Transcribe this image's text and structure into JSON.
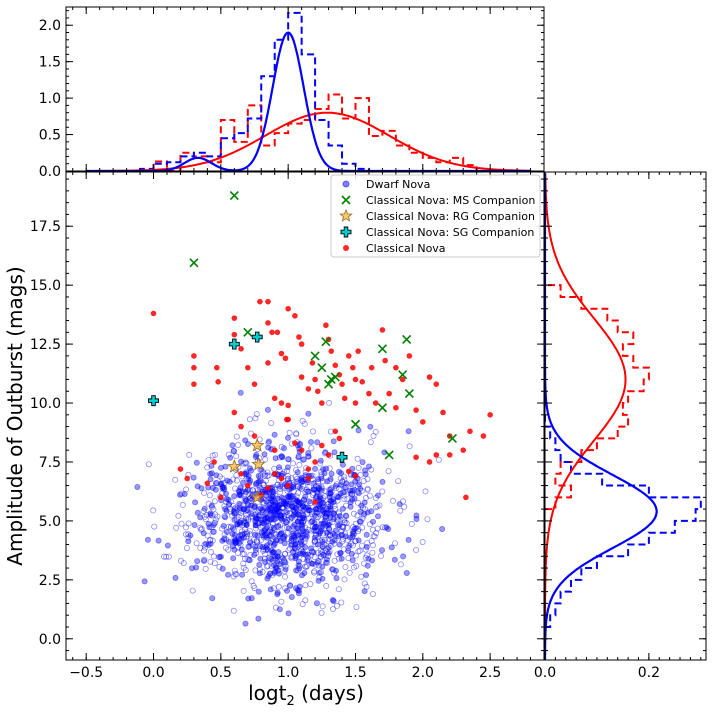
{
  "chart_data": {
    "type": "scatter",
    "main": {
      "xlabel": "logt",
      "xlabel_sub": "2",
      "xlabel_suffix": " (days)",
      "ylabel": "Amplitude of Outburst (mags)",
      "xlim": [
        -0.65,
        2.9
      ],
      "ylim": [
        -0.9,
        19.8
      ],
      "xticks": [
        -0.5,
        0.0,
        0.5,
        1.0,
        1.5,
        2.0,
        2.5
      ],
      "xtick_labels": [
        "−0.5",
        "0.0",
        "0.5",
        "1.0",
        "1.5",
        "2.0",
        "2.5"
      ],
      "yticks": [
        0.0,
        2.5,
        5.0,
        7.5,
        10.0,
        12.5,
        15.0,
        17.5
      ],
      "ytick_labels": [
        "0.0",
        "2.5",
        "5.0",
        "7.5",
        "10.0",
        "12.5",
        "15.0",
        "17.5"
      ],
      "legend_position": "top-right"
    },
    "legend": [
      {
        "label": "Dwarf Nova",
        "marker": "circle",
        "color": "#0000ff"
      },
      {
        "label": "Classical Nova: MS Companion",
        "marker": "x",
        "color": "#008000"
      },
      {
        "label": "Classical Nova: RG Companion",
        "marker": "star",
        "color": "#ffa500"
      },
      {
        "label": "Classical Nova: SG Companion",
        "marker": "plus",
        "color": "#00ced1"
      },
      {
        "label": "Classical Nova",
        "marker": "circle",
        "color": "#ff0000"
      }
    ],
    "dwarf_nova": {
      "count": 1400,
      "mean_x": 1.0,
      "sd_x": 0.36,
      "mean_y": 5.2,
      "sd_y": 1.5,
      "color": "#0000ff"
    },
    "classical_nova": [
      [
        0.0,
        13.8
      ],
      [
        0.3,
        12.0
      ],
      [
        0.3,
        11.5
      ],
      [
        0.3,
        10.8
      ],
      [
        0.48,
        10.9
      ],
      [
        0.47,
        11.5
      ],
      [
        0.6,
        13.6
      ],
      [
        0.6,
        12.9
      ],
      [
        0.65,
        12.3
      ],
      [
        0.7,
        11.5
      ],
      [
        0.75,
        10.8
      ],
      [
        0.6,
        9.6
      ],
      [
        0.65,
        9.0
      ],
      [
        0.75,
        8.6
      ],
      [
        0.79,
        14.3
      ],
      [
        0.85,
        14.3
      ],
      [
        0.85,
        13.4
      ],
      [
        0.88,
        13.0
      ],
      [
        0.92,
        13.0
      ],
      [
        0.95,
        12.1
      ],
      [
        0.98,
        11.9
      ],
      [
        0.85,
        11.7
      ],
      [
        0.9,
        10.2
      ],
      [
        0.95,
        10.0
      ],
      [
        0.99,
        9.3
      ],
      [
        1.0,
        9.9
      ],
      [
        1.0,
        14.0
      ],
      [
        1.05,
        13.7
      ],
      [
        1.08,
        12.8
      ],
      [
        1.1,
        12.5
      ],
      [
        1.1,
        11.1
      ],
      [
        1.15,
        10.6
      ],
      [
        1.18,
        11.7
      ],
      [
        1.2,
        11.0
      ],
      [
        1.22,
        10.5
      ],
      [
        1.25,
        10.0
      ],
      [
        1.28,
        13.3
      ],
      [
        1.3,
        12.7
      ],
      [
        1.32,
        12.2
      ],
      [
        1.35,
        11.6
      ],
      [
        1.38,
        11.2
      ],
      [
        1.4,
        10.8
      ],
      [
        1.42,
        10.2
      ],
      [
        1.45,
        12.0
      ],
      [
        1.48,
        11.5
      ],
      [
        1.5,
        11.0
      ],
      [
        1.5,
        10.0
      ],
      [
        1.52,
        12.2
      ],
      [
        1.55,
        10.9
      ],
      [
        1.6,
        10.4
      ],
      [
        1.62,
        11.5
      ],
      [
        1.65,
        10.0
      ],
      [
        1.7,
        13.1
      ],
      [
        1.72,
        11.8
      ],
      [
        1.75,
        10.4
      ],
      [
        1.8,
        9.8
      ],
      [
        1.8,
        11.5
      ],
      [
        1.85,
        11.0
      ],
      [
        1.9,
        12.0
      ],
      [
        1.95,
        9.7
      ],
      [
        2.0,
        9.2
      ],
      [
        2.05,
        11.1
      ],
      [
        2.1,
        10.8
      ],
      [
        2.15,
        9.6
      ],
      [
        2.2,
        7.8
      ],
      [
        2.3,
        8.0
      ],
      [
        2.35,
        8.8
      ],
      [
        2.45,
        8.6
      ],
      [
        2.5,
        9.5
      ],
      [
        2.32,
        6.0
      ],
      [
        2.1,
        7.8
      ],
      [
        2.05,
        7.5
      ],
      [
        1.95,
        7.7
      ],
      [
        2.2,
        8.6
      ],
      [
        1.15,
        7.2
      ],
      [
        1.2,
        7.5
      ],
      [
        1.25,
        8.2
      ],
      [
        1.3,
        7.8
      ],
      [
        1.1,
        8.0
      ],
      [
        1.05,
        8.3
      ],
      [
        1.0,
        9.3
      ],
      [
        0.9,
        8.0
      ],
      [
        0.85,
        6.4
      ],
      [
        0.9,
        7.0
      ],
      [
        0.65,
        7.0
      ],
      [
        0.7,
        6.5
      ],
      [
        0.8,
        6.1
      ],
      [
        0.95,
        6.8
      ],
      [
        1.0,
        6.5
      ],
      [
        1.15,
        6.8
      ],
      [
        1.2,
        5.8
      ],
      [
        1.35,
        8.8
      ],
      [
        1.38,
        8.5
      ],
      [
        1.45,
        7.1
      ],
      [
        1.5,
        6.9
      ],
      [
        0.2,
        7.2
      ],
      [
        0.25,
        6.8
      ],
      [
        0.4,
        6.6
      ],
      [
        0.45,
        7.5
      ],
      [
        0.5,
        6.0
      ]
    ],
    "ms_companion": [
      [
        0.6,
        18.8
      ],
      [
        0.3,
        15.95
      ],
      [
        0.7,
        13.0
      ],
      [
        1.2,
        12.0
      ],
      [
        1.28,
        12.6
      ],
      [
        1.25,
        11.5
      ],
      [
        1.3,
        10.8
      ],
      [
        1.32,
        11.0
      ],
      [
        1.7,
        12.3
      ],
      [
        1.88,
        12.7
      ],
      [
        1.85,
        11.2
      ],
      [
        1.9,
        10.4
      ],
      [
        1.7,
        9.8
      ],
      [
        1.5,
        9.1
      ],
      [
        1.75,
        7.8
      ],
      [
        2.22,
        8.5
      ],
      [
        1.35,
        11.1
      ]
    ],
    "rg_companion": [
      [
        0.6,
        7.3
      ],
      [
        0.77,
        8.2
      ],
      [
        0.78,
        7.4
      ],
      [
        0.77,
        6.0
      ]
    ],
    "sg_companion": [
      [
        0.6,
        12.5
      ],
      [
        0.77,
        12.8
      ],
      [
        0.0,
        10.1
      ],
      [
        1.4,
        7.7
      ]
    ],
    "top_hist": {
      "ylim": [
        0,
        2.25
      ],
      "yticks": [
        0.0,
        0.5,
        1.0,
        1.5,
        2.0
      ],
      "ytick_labels": [
        "0.0",
        "0.5",
        "1.0",
        "1.5",
        "2.0"
      ],
      "bin_width": 0.1,
      "dwarf_bins": [
        [
          -0.1,
          0.03
        ],
        [
          0.0,
          0.1
        ],
        [
          0.1,
          0.12
        ],
        [
          0.2,
          0.2
        ],
        [
          0.3,
          0.25
        ],
        [
          0.4,
          0.2
        ],
        [
          0.5,
          0.45
        ],
        [
          0.6,
          0.52
        ],
        [
          0.7,
          0.72
        ],
        [
          0.8,
          1.3
        ],
        [
          0.9,
          1.8
        ],
        [
          1.0,
          2.17
        ],
        [
          1.1,
          1.6
        ],
        [
          1.2,
          0.7
        ],
        [
          1.3,
          0.35
        ],
        [
          1.4,
          0.1
        ],
        [
          1.5,
          0.03
        ]
      ],
      "dwarf_curve": {
        "components": [
          {
            "w": 0.18,
            "mu": 0.33,
            "sigma": 0.1
          },
          {
            "w": 1.9,
            "mu": 1.0,
            "sigma": 0.115
          }
        ]
      },
      "nova_bins": [
        [
          0.0,
          0.13
        ],
        [
          0.1,
          0.0
        ],
        [
          0.2,
          0.25
        ],
        [
          0.3,
          0.2
        ],
        [
          0.4,
          0.12
        ],
        [
          0.5,
          0.7
        ],
        [
          0.6,
          0.4
        ],
        [
          0.7,
          0.9
        ],
        [
          0.8,
          0.35
        ],
        [
          0.9,
          0.52
        ],
        [
          1.0,
          0.65
        ],
        [
          1.1,
          0.7
        ],
        [
          1.2,
          0.85
        ],
        [
          1.3,
          1.05
        ],
        [
          1.4,
          0.72
        ],
        [
          1.5,
          1.0
        ],
        [
          1.6,
          0.48
        ],
        [
          1.7,
          0.55
        ],
        [
          1.8,
          0.35
        ],
        [
          1.9,
          0.25
        ],
        [
          2.0,
          0.18
        ],
        [
          2.1,
          0.12
        ],
        [
          2.2,
          0.18
        ],
        [
          2.3,
          0.08
        ]
      ],
      "nova_curve": {
        "components": [
          {
            "w": 0.8,
            "mu": 1.29,
            "sigma": 0.46
          }
        ]
      }
    },
    "right_hist": {
      "xlim": [
        0,
        0.31
      ],
      "xticks": [
        0.0,
        0.2
      ],
      "xtick_labels": [
        "0.0",
        "0.2"
      ],
      "bin_width": 0.5,
      "dwarf_bins": [
        [
          0.5,
          0.01
        ],
        [
          1.0,
          0.02
        ],
        [
          1.5,
          0.03
        ],
        [
          2.0,
          0.05
        ],
        [
          2.5,
          0.07
        ],
        [
          3.0,
          0.1
        ],
        [
          3.5,
          0.16
        ],
        [
          4.0,
          0.2
        ],
        [
          4.5,
          0.25
        ],
        [
          5.0,
          0.29
        ],
        [
          5.5,
          0.3
        ],
        [
          6.0,
          0.2
        ],
        [
          6.5,
          0.11
        ],
        [
          7.0,
          0.05
        ],
        [
          7.5,
          0.03
        ],
        [
          8.0,
          0.02
        ],
        [
          8.5,
          0.01
        ],
        [
          9.0,
          0.0
        ]
      ],
      "dwarf_curve": {
        "components": [
          {
            "w": 0.215,
            "mu": 5.4,
            "sigma": 1.55
          }
        ]
      },
      "nova_bins": [
        [
          5.5,
          0.02
        ],
        [
          6.0,
          0.05
        ],
        [
          6.5,
          0.02
        ],
        [
          7.0,
          0.03
        ],
        [
          7.5,
          0.07
        ],
        [
          8.0,
          0.1
        ],
        [
          8.5,
          0.14
        ],
        [
          9.0,
          0.16
        ],
        [
          9.5,
          0.15
        ],
        [
          10.0,
          0.16
        ],
        [
          10.5,
          0.19
        ],
        [
          11.0,
          0.2
        ],
        [
          11.5,
          0.17
        ],
        [
          12.0,
          0.15
        ],
        [
          12.5,
          0.17
        ],
        [
          13.0,
          0.14
        ],
        [
          13.5,
          0.12
        ],
        [
          14.0,
          0.07
        ],
        [
          14.5,
          0.03
        ]
      ],
      "nova_curve": {
        "components": [
          {
            "w": 0.155,
            "mu": 11.0,
            "sigma": 2.6
          }
        ]
      }
    },
    "colors": {
      "dwarf": "#0000ff",
      "nova": "#ff0000",
      "ms": "#008000",
      "rg": "#ffa500",
      "sg": "#00ced1"
    }
  }
}
